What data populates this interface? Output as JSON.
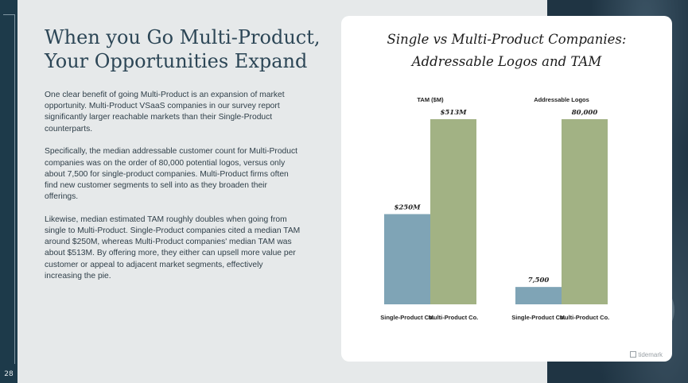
{
  "page": {
    "number": "28",
    "title_line1": "When you Go Multi-Product,",
    "title_line2": "Your Opportunities Expand",
    "paragraphs": [
      "One clear benefit of going Multi-Product is an expansion of market opportunity. Multi-Product VSaaS companies in our survey report significantly larger reachable markets than their Single-Product counterparts.",
      "Specifically, the median addressable customer count for Multi-Product companies was on the order of 80,000 potential logos, versus only about 7,500 for single-product companies. Multi-Product firms often find new customer segments to sell into as they broaden their offerings.",
      "Likewise, median estimated TAM roughly doubles when going from single to Multi-Product. Single-Product companies cited a median TAM around $250M, whereas Multi-Product companies' median TAM was about $513M. By offering more, they either can upsell more value per customer or appeal to adjacent market segments, effectively increasing the pie."
    ],
    "brand": "tidemark"
  },
  "colors": {
    "single": "#7fa4b6",
    "multi": "#a2b284",
    "accent": "#2c4656"
  },
  "chart_data": {
    "type": "bar",
    "title_line1": "Single vs Multi-Product Companies:",
    "title_line2": "Addressable Logos and TAM",
    "panels": [
      {
        "name": "TAM ($M)",
        "categories": [
          "Single-Product Co.",
          "Multi-Product Co."
        ],
        "values": [
          250,
          513
        ],
        "labels": [
          "$250M",
          "$513M"
        ],
        "ylim": [
          0,
          513
        ]
      },
      {
        "name": "Addressable Logos",
        "categories": [
          "Single-Product Co.",
          "Multi-Product Co."
        ],
        "values": [
          7500,
          80000
        ],
        "labels": [
          "7,500",
          "80,000"
        ],
        "ylim": [
          0,
          80000
        ]
      }
    ]
  }
}
